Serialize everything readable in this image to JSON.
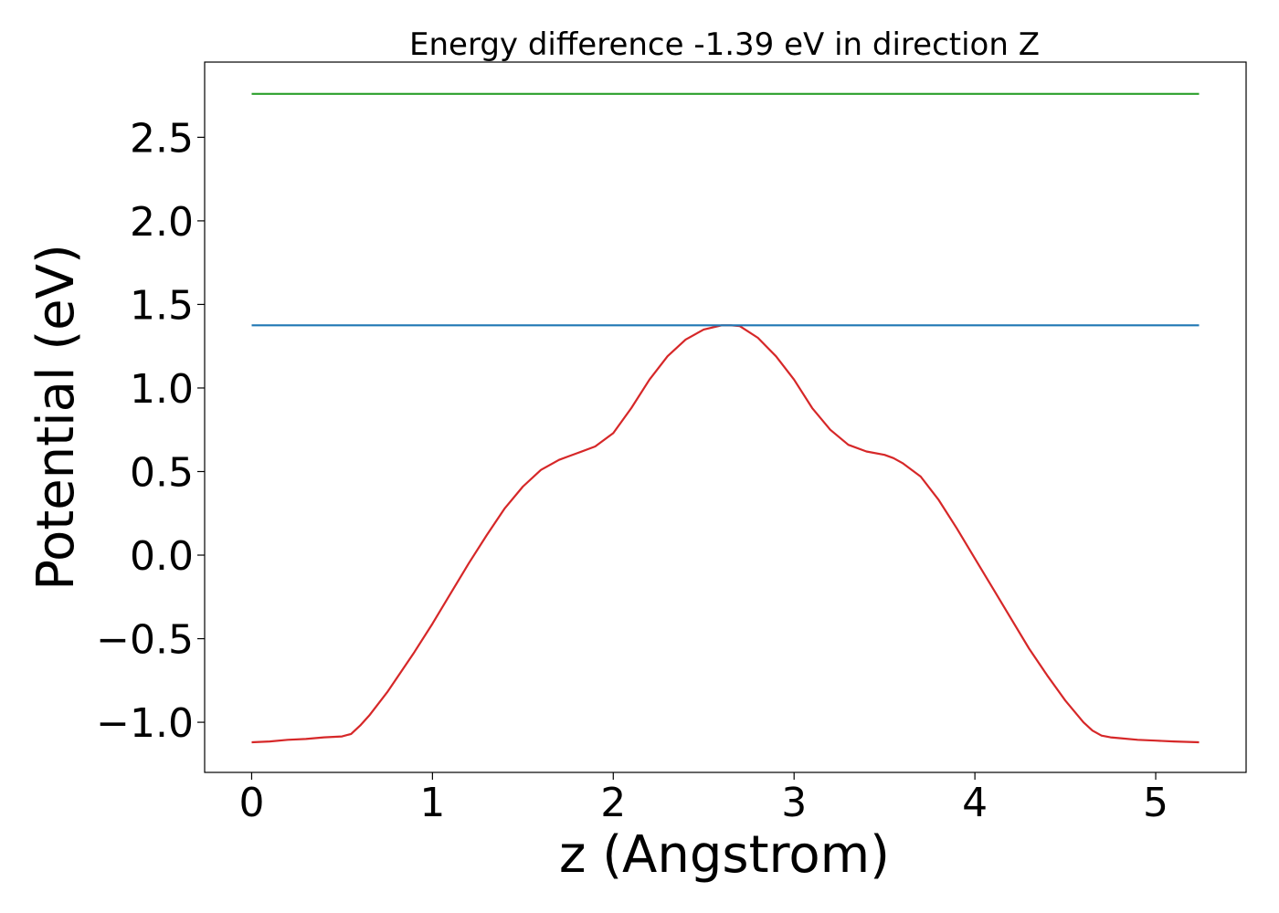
{
  "chart_data": {
    "type": "line",
    "title": "Energy difference -1.39 eV in direction Z",
    "xlabel": "z (Angstrom)",
    "ylabel": "Potential (eV)",
    "xlim": [
      -0.26,
      5.5
    ],
    "ylim": [
      -1.3,
      2.95
    ],
    "grid": false,
    "xticks": [
      0,
      1,
      2,
      3,
      4,
      5
    ],
    "xtick_labels": [
      "0",
      "1",
      "2",
      "3",
      "4",
      "5"
    ],
    "yticks": [
      -1.0,
      -0.5,
      0.0,
      0.5,
      1.0,
      1.5,
      2.0,
      2.5
    ],
    "ytick_labels": [
      "−1.0",
      "−0.5",
      "0.0",
      "0.5",
      "1.0",
      "1.5",
      "2.0",
      "2.5"
    ],
    "series": [
      {
        "color": "#d62728",
        "x": [
          0.0,
          0.1,
          0.2,
          0.3,
          0.4,
          0.5,
          0.55,
          0.6,
          0.65,
          0.7,
          0.75,
          0.8,
          0.9,
          1.0,
          1.1,
          1.2,
          1.3,
          1.4,
          1.5,
          1.6,
          1.7,
          1.75,
          1.8,
          1.9,
          2.0,
          2.1,
          2.2,
          2.3,
          2.4,
          2.5,
          2.6,
          2.65,
          2.7,
          2.8,
          2.9,
          3.0,
          3.1,
          3.2,
          3.3,
          3.4,
          3.5,
          3.55,
          3.6,
          3.7,
          3.8,
          3.9,
          4.0,
          4.1,
          4.2,
          4.3,
          4.4,
          4.5,
          4.6,
          4.65,
          4.7,
          4.75,
          4.8,
          4.9,
          5.0,
          5.1,
          5.24
        ],
        "y": [
          -1.12,
          -1.115,
          -1.105,
          -1.1,
          -1.09,
          -1.085,
          -1.07,
          -1.02,
          -0.96,
          -0.89,
          -0.82,
          -0.74,
          -0.58,
          -0.41,
          -0.23,
          -0.05,
          0.12,
          0.28,
          0.41,
          0.51,
          0.57,
          0.59,
          0.61,
          0.65,
          0.73,
          0.88,
          1.05,
          1.19,
          1.29,
          1.35,
          1.375,
          1.375,
          1.37,
          1.3,
          1.19,
          1.05,
          0.88,
          0.75,
          0.66,
          0.62,
          0.6,
          0.58,
          0.55,
          0.47,
          0.33,
          0.16,
          -0.02,
          -0.2,
          -0.38,
          -0.56,
          -0.72,
          -0.87,
          -1.0,
          -1.05,
          -1.08,
          -1.09,
          -1.095,
          -1.105,
          -1.11,
          -1.115,
          -1.12
        ]
      },
      {
        "color": "#1f77b4",
        "x": [
          0.0,
          5.24
        ],
        "y": [
          1.375,
          1.375
        ]
      },
      {
        "color": "#2ca02c",
        "x": [
          0.0,
          5.24
        ],
        "y": [
          2.76,
          2.76
        ]
      }
    ]
  }
}
